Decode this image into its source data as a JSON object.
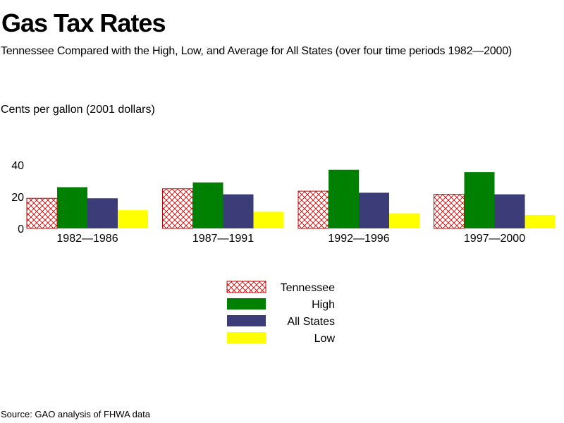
{
  "title": "Gas Tax Rates",
  "subtitle": "Tennessee Compared with the High, Low, and Average for All States (over four time periods 1982—2000)",
  "source": "Source: GAO analysis of FHWA data",
  "colors": {
    "tennessee": "#cc0000",
    "high": "#008000",
    "all_states": "#3c3c78",
    "low": "#ffff00"
  },
  "chart_data": {
    "type": "bar",
    "ylabel": "Cents per gallon (2001 dollars)",
    "xlabel": "",
    "ylim": [
      0,
      45
    ],
    "yticks": [
      0,
      20,
      40
    ],
    "grid": false,
    "legend": "bottom-center",
    "categories": [
      "1982—1986",
      "1987—1991",
      "1992—1996",
      "1997—2000"
    ],
    "series": [
      {
        "name": "Tennessee",
        "key": "tennessee",
        "pattern": "crosshatch",
        "values": [
          19,
          25,
          23.5,
          21.5
        ]
      },
      {
        "name": "High",
        "key": "high",
        "pattern": "solid",
        "values": [
          26,
          29,
          37,
          35.5
        ]
      },
      {
        "name": "All States",
        "key": "all_states",
        "pattern": "solid",
        "values": [
          19,
          21.5,
          22.5,
          21.5
        ]
      },
      {
        "name": "Low",
        "key": "low",
        "pattern": "solid",
        "values": [
          11.5,
          10.5,
          9.5,
          8.5
        ]
      }
    ]
  }
}
